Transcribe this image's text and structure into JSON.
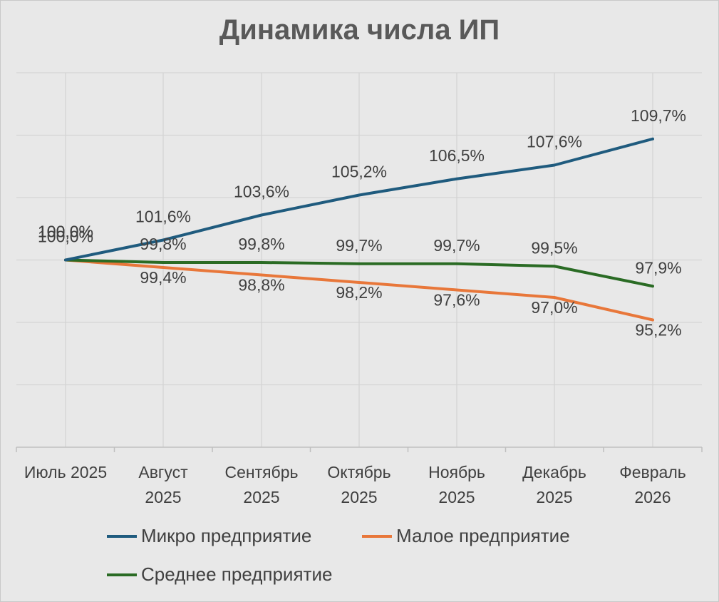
{
  "colors": {
    "micro": "#1f5b7e",
    "small": "#e8773a",
    "medium": "#2a6b24",
    "grid": "#d4d4d4",
    "axis": "#bfbfbf",
    "text": "#404040",
    "background": "#e8e8e8"
  },
  "chart_data": {
    "type": "line",
    "title": "Динамика числа ИП",
    "xlabel": "",
    "ylabel": "",
    "categories": [
      [
        "Июль 2025"
      ],
      [
        "Август",
        "2025"
      ],
      [
        "Сентябрь",
        "2025"
      ],
      [
        "Октябрь",
        "2025"
      ],
      [
        "Ноябрь",
        "2025"
      ],
      [
        "Декабрь",
        "2025"
      ],
      [
        "Февраль",
        "2026"
      ]
    ],
    "ylim": [
      85,
      115
    ],
    "grid": true,
    "legend_position": "bottom",
    "series": [
      {
        "key": "micro",
        "name": "Микро предприятие",
        "values": [
          100.0,
          101.6,
          103.6,
          105.2,
          106.5,
          107.6,
          109.7
        ],
        "labels": [
          "100,0%",
          "101,6%",
          "103,6%",
          "105,2%",
          "106,5%",
          "107,6%",
          "109,7%"
        ]
      },
      {
        "key": "small",
        "name": "Малое предприятие",
        "values": [
          100.0,
          99.4,
          98.8,
          98.2,
          97.6,
          97.0,
          95.2
        ],
        "labels": [
          "100,0%",
          "99,4%",
          "98,8%",
          "98,2%",
          "97,6%",
          "97,0%",
          "95,2%"
        ]
      },
      {
        "key": "medium",
        "name": "Среднее предприятие",
        "values": [
          100.0,
          99.8,
          99.8,
          99.7,
          99.7,
          99.5,
          97.9
        ],
        "labels": [
          "100,0%",
          "99,8%",
          "99,8%",
          "99,7%",
          "99,7%",
          "99,5%",
          "97,9%"
        ]
      }
    ]
  }
}
